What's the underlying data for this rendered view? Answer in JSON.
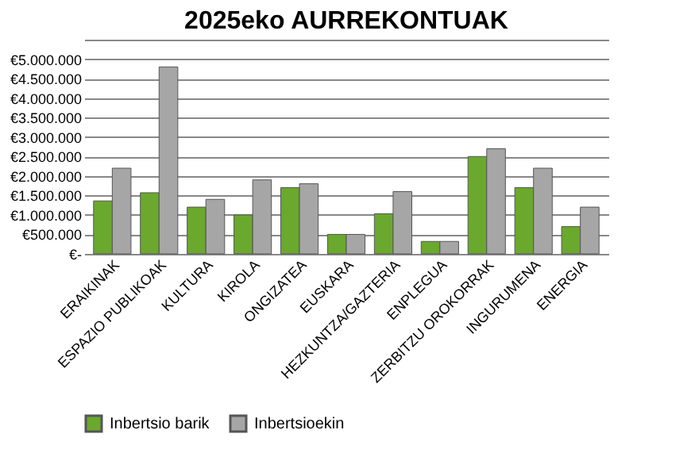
{
  "chart_data": {
    "type": "bar",
    "title": "2025eko AURREKONTUAK",
    "categories": [
      "ERAIKINAK",
      "ESPAZIO PUBLIKOAK",
      "KULTURA",
      "KIROLA",
      "ONGIZATEA",
      "EUSKARA",
      "HEZKUNTZA/GAZTERIA",
      "ENPLEGUA",
      "ZERBITZU OROKORRAK",
      "INGURUMENA",
      "ENERGIA"
    ],
    "series": [
      {
        "name": "Inbertsio barik",
        "color": "#6aa82e",
        "values": [
          1360000,
          1570000,
          1200000,
          1000000,
          1700000,
          500000,
          1030000,
          320000,
          2500000,
          1700000,
          700000
        ]
      },
      {
        "name": "Inbertsioekin",
        "color": "#a6a6a6",
        "values": [
          2200000,
          4800000,
          1400000,
          1900000,
          1800000,
          500000,
          1600000,
          320000,
          2700000,
          2200000,
          1200000
        ]
      }
    ],
    "ylim": [
      0,
      5500000
    ],
    "yticks": [
      {
        "value": 0,
        "label": "€-"
      },
      {
        "value": 500000,
        "label": "€500.000"
      },
      {
        "value": 1000000,
        "label": "€1.000.000"
      },
      {
        "value": 1500000,
        "label": "€1.500.000"
      },
      {
        "value": 2000000,
        "label": "€2.000.000"
      },
      {
        "value": 2500000,
        "label": "€2.500.000"
      },
      {
        "value": 3000000,
        "label": "€3.000.000"
      },
      {
        "value": 3500000,
        "label": "€3.500.000"
      },
      {
        "value": 4000000,
        "label": "€4.000.000"
      },
      {
        "value": 4500000,
        "label": "€4.500.000"
      },
      {
        "value": 5000000,
        "label": "€5.000.000"
      },
      {
        "value": 5500000,
        "label": null
      }
    ],
    "grid": "y",
    "legend": "bottom"
  }
}
